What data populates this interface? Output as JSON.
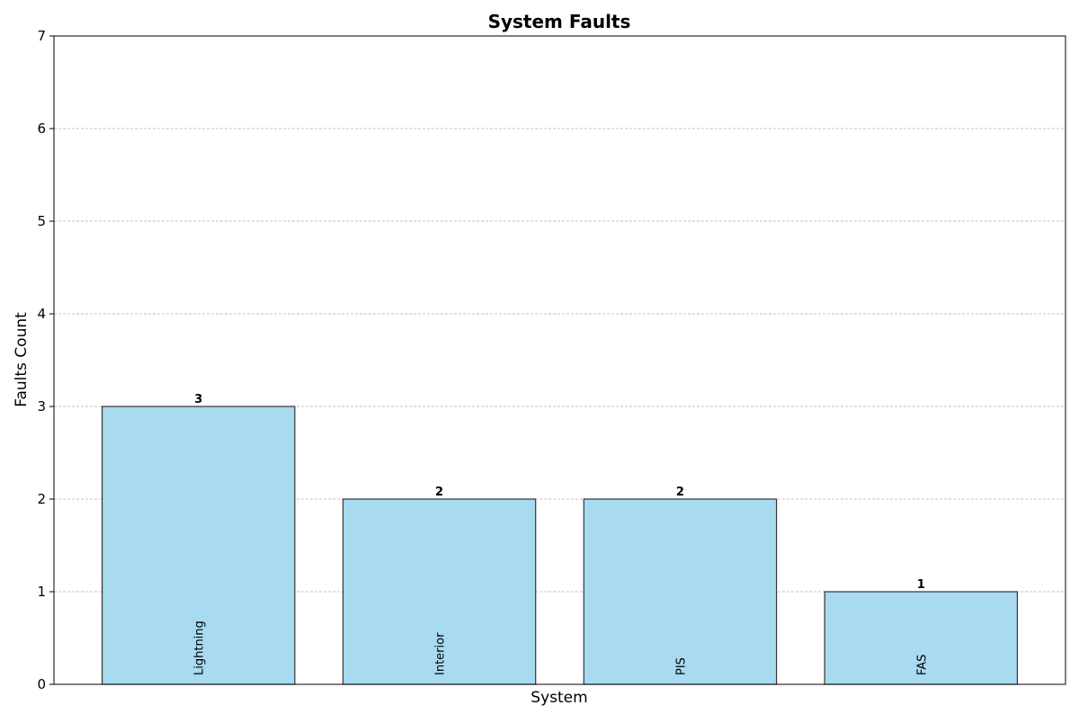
{
  "chart_data": {
    "type": "bar",
    "title": "System Faults",
    "xlabel": "System",
    "ylabel": "Faults Count",
    "categories": [
      "Lightning",
      "Interior",
      "PIS",
      "FAS"
    ],
    "values": [
      3,
      2,
      2,
      1
    ],
    "ylim": [
      0,
      7
    ],
    "yticks": [
      0,
      1,
      2,
      3,
      4,
      5,
      6,
      7
    ],
    "grid": "y-dashed",
    "legend": "none",
    "colors": {
      "bar_fill": "#a8daf0",
      "bar_edge": "#333333",
      "grid": "#b0b0b0",
      "axis": "#000000"
    }
  }
}
